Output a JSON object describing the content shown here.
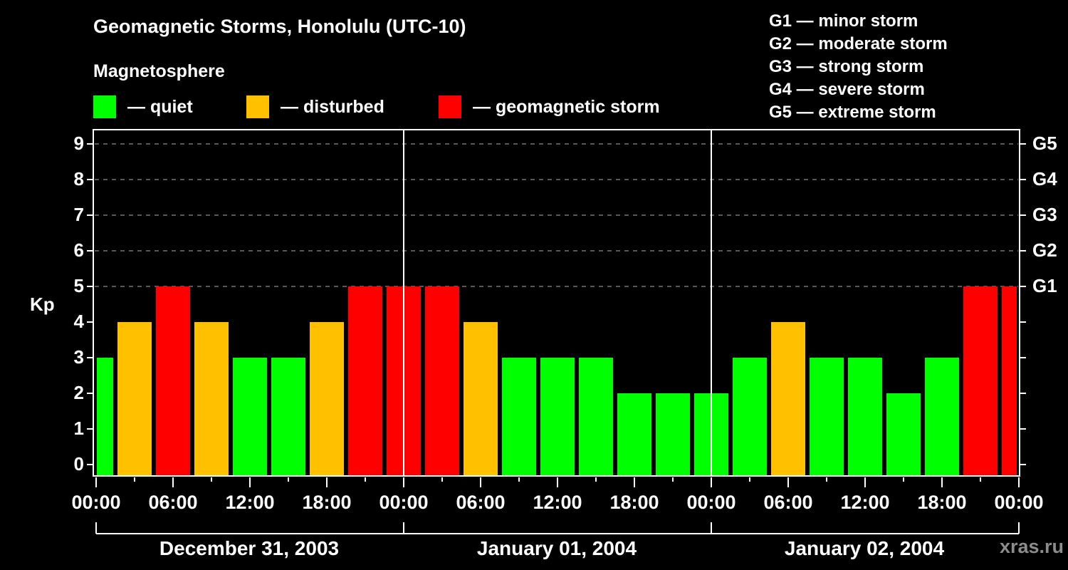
{
  "header": {
    "title": "Geomagnetic Storms, Honolulu (UTC-10)",
    "subtitle": "Magnetosphere",
    "legend": [
      {
        "label": "— quiet",
        "color": "#00ff00"
      },
      {
        "label": "— disturbed",
        "color": "#ffc000"
      },
      {
        "label": "— geomagnetic storm",
        "color": "#ff0000"
      }
    ],
    "storm_scale": [
      "G1 — minor storm",
      "G2 — moderate storm",
      "G3 — strong storm",
      "G4 — severe storm",
      "G5 — extreme storm"
    ]
  },
  "axes": {
    "ylabel": "Kp",
    "y_ticks": [
      "0",
      "1",
      "2",
      "3",
      "4",
      "5",
      "6",
      "7",
      "8",
      "9"
    ],
    "g_ticks": [
      "G1",
      "G2",
      "G3",
      "G4",
      "G5"
    ],
    "x_ticks": [
      "00:00",
      "06:00",
      "12:00",
      "18:00",
      "00:00",
      "06:00",
      "12:00",
      "18:00",
      "00:00",
      "06:00",
      "12:00",
      "18:00",
      "00:00"
    ],
    "dates": [
      "December 31, 2003",
      "January 01, 2004",
      "January 02, 2004"
    ]
  },
  "watermark": "xras.ru",
  "chart_data": {
    "type": "bar",
    "title": "Geomagnetic Storms, Honolulu (UTC-10)",
    "subtitle": "Magnetosphere",
    "xlabel": "",
    "ylabel": "Kp",
    "ylim": [
      0,
      9
    ],
    "grid": "dashed horizontal at Kp 5-9",
    "legend_position": "top",
    "categories": [
      "Dec31 00:00",
      "Dec31 03:00",
      "Dec31 06:00",
      "Dec31 09:00",
      "Dec31 12:00",
      "Dec31 15:00",
      "Dec31 18:00",
      "Dec31 21:00",
      "Jan01 00:00",
      "Jan01 03:00",
      "Jan01 06:00",
      "Jan01 09:00",
      "Jan01 12:00",
      "Jan01 15:00",
      "Jan01 18:00",
      "Jan01 21:00",
      "Jan02 00:00",
      "Jan02 03:00",
      "Jan02 06:00",
      "Jan02 09:00",
      "Jan02 12:00",
      "Jan02 15:00",
      "Jan02 18:00",
      "Jan02 21:00",
      "Jan02 24:00"
    ],
    "values": [
      3,
      4,
      5,
      4,
      3,
      3,
      4,
      5,
      5,
      5,
      4,
      3,
      3,
      3,
      2,
      2,
      2,
      3,
      4,
      3,
      3,
      2,
      3,
      5,
      5
    ],
    "status": [
      "quiet",
      "disturbed",
      "storm",
      "disturbed",
      "quiet",
      "quiet",
      "disturbed",
      "storm",
      "storm",
      "storm",
      "disturbed",
      "quiet",
      "quiet",
      "quiet",
      "quiet",
      "quiet",
      "quiet",
      "quiet",
      "disturbed",
      "quiet",
      "quiet",
      "quiet",
      "quiet",
      "storm",
      "storm"
    ],
    "colors": {
      "quiet": "#00ff00",
      "disturbed": "#ffc000",
      "storm": "#ff0000"
    },
    "storm_levels": {
      "G1": 5,
      "G2": 6,
      "G3": 7,
      "G4": 8,
      "G5": 9
    }
  }
}
